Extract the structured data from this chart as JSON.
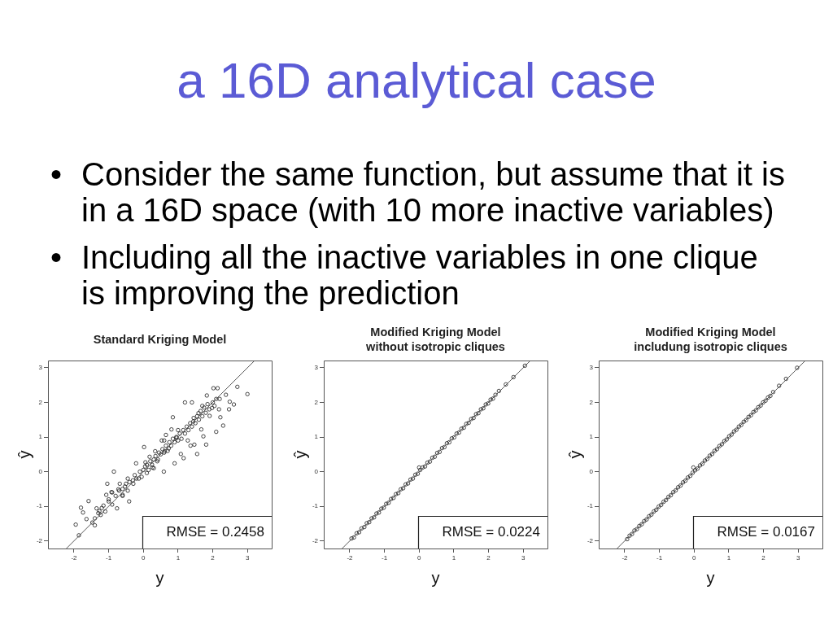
{
  "chart_data": [
    {
      "type": "other",
      "title": "a 16D analytical case",
      "annotations": [
        "• Consider the same function, but assume that it is in a 16D space (with 10 more inactive variables)",
        "• Including all the inactive variables in one clique is improving the prediction"
      ]
    },
    {
      "type": "scatter",
      "title": "Standard Kriging Model",
      "xlabel": "y",
      "ylabel": "ŷ",
      "xlim": [
        -2.75,
        3.7
      ],
      "ylim": [
        -2.22,
        3.21
      ],
      "xticks": [
        -2,
        -1,
        0,
        1,
        2,
        3
      ],
      "yticks": [
        -2,
        -1,
        0,
        1,
        2,
        3
      ],
      "marker": "circle",
      "annotations": [
        "RMSE = 0.2458"
      ],
      "series": [
        {
          "color": "#1a1a1a",
          "x": [
            -1.95,
            -1.86,
            -1.8,
            -1.74,
            -1.58,
            -1.64,
            -1.47,
            -1.4,
            -1.35,
            -1.27,
            -1.23,
            -1.15,
            -1.07,
            -1.04,
            -1.0,
            -0.92,
            -0.85,
            -0.76,
            -0.72,
            -0.68,
            -0.6,
            -0.53,
            -0.41,
            -0.45,
            -0.29,
            -0.21,
            -0.13,
            0.02,
            0.06,
            0.1,
            0.18,
            0.26,
            0.34,
            0.42,
            0.53,
            0.59,
            0.61,
            0.65,
            0.73,
            0.85,
            0.9,
            0.81,
            0.96,
            1.08,
            1.16,
            1.2,
            1.28,
            1.36,
            1.4,
            1.44,
            1.47,
            1.55,
            1.59,
            1.67,
            1.73,
            1.81,
            1.83,
            1.91,
            1.98,
            2.02,
            2.14,
            2.1,
            2.18,
            2.22,
            2.3,
            2.38,
            2.49,
            2.47,
            2.61,
            2.71,
            3.0,
            -1.3,
            -1.2,
            -1.1,
            -1.0,
            -0.9,
            -0.8,
            -0.7,
            -0.6,
            -0.5,
            -0.45,
            -0.4,
            -0.3,
            -0.25,
            -0.2,
            -0.1,
            -0.05,
            0.0,
            0.05,
            0.1,
            0.15,
            0.2,
            0.25,
            0.3,
            0.35,
            0.4,
            0.45,
            0.5,
            0.55,
            0.6,
            0.65,
            0.7,
            0.75,
            0.8,
            0.85,
            0.9,
            0.95,
            1.0,
            1.05,
            1.1,
            1.15,
            1.2,
            1.25,
            1.3,
            1.35,
            1.4,
            1.45,
            1.5,
            1.55,
            1.6,
            1.65,
            1.7,
            1.75,
            1.8,
            1.85,
            1.9,
            2.0,
            2.05,
            2.1,
            1.0,
            0.6,
            0.3,
            -0.6,
            -0.9,
            -1.4,
            1.7,
            2.2
          ],
          "values": [
            -1.53,
            -1.84,
            -1.04,
            -1.18,
            -0.85,
            -1.37,
            -1.47,
            -1.55,
            -1.06,
            -1.14,
            -1.25,
            -0.98,
            -0.67,
            -0.35,
            -0.86,
            -0.59,
            0.0,
            -1.06,
            -0.51,
            -0.35,
            -0.67,
            -0.43,
            -0.86,
            -0.2,
            -0.35,
            0.24,
            -0.2,
            0.71,
            0.27,
            -0.04,
            0.43,
            0.12,
            0.59,
            0.35,
            0.9,
            0.0,
            0.59,
            1.06,
            0.67,
            1.57,
            0.24,
            1.22,
            0.98,
            0.51,
            0.39,
            2.0,
            0.9,
            0.75,
            2.0,
            1.45,
            0.78,
            0.51,
            1.69,
            1.22,
            1.02,
            0.78,
            2.2,
            1.61,
            1.84,
            2.41,
            2.41,
            1.15,
            1.8,
            1.57,
            1.33,
            2.22,
            2.02,
            1.8,
            1.94,
            2.45,
            2.24,
            -1.2,
            -1.05,
            -1.15,
            -0.8,
            -0.95,
            -0.7,
            -0.55,
            -0.5,
            -0.35,
            -0.55,
            -0.3,
            -0.25,
            -0.1,
            -0.2,
            0.0,
            -0.15,
            0.05,
            0.15,
            0.2,
            0.05,
            0.3,
            0.2,
            0.35,
            0.45,
            0.3,
            0.55,
            0.5,
            0.65,
            0.55,
            0.75,
            0.6,
            0.85,
            0.75,
            0.95,
            0.85,
            1.0,
            0.9,
            1.1,
            0.95,
            1.2,
            1.1,
            1.3,
            1.2,
            1.4,
            1.3,
            1.55,
            1.4,
            1.6,
            1.5,
            1.75,
            1.6,
            1.85,
            1.7,
            1.95,
            1.8,
            2.0,
            1.9,
            2.1,
            1.2,
            0.9,
            0.1,
            -0.7,
            -0.6,
            -1.35,
            1.9,
            2.1
          ]
        },
        {
          "type": "line",
          "marker": "none",
          "color": "#555555",
          "x": [
            -2.22,
            3.21
          ],
          "values": [
            -2.22,
            3.21
          ]
        }
      ]
    },
    {
      "type": "scatter",
      "title": "Modified Kriging Model\nwithout isotropic cliques",
      "xlabel": "y",
      "ylabel": "ŷ",
      "xlim": [
        -2.75,
        3.7
      ],
      "ylim": [
        -2.22,
        3.21
      ],
      "xticks": [
        -2,
        -1,
        0,
        1,
        2,
        3
      ],
      "yticks": [
        -2,
        -1,
        0,
        1,
        2,
        3
      ],
      "marker": "circle",
      "annotations": [
        "RMSE = 0.0224"
      ],
      "series": [
        {
          "color": "#1a1a1a",
          "x": [
            -1.95,
            -1.88,
            -1.8,
            -1.73,
            -1.66,
            -1.58,
            -1.51,
            -1.44,
            -1.37,
            -1.3,
            -1.23,
            -1.16,
            -1.09,
            -1.02,
            -0.95,
            -0.88,
            -0.81,
            -0.74,
            -0.67,
            -0.6,
            -0.53,
            -0.46,
            -0.39,
            -0.32,
            -0.25,
            -0.18,
            -0.11,
            -0.04,
            0.0,
            0.03,
            0.1,
            0.17,
            0.24,
            0.31,
            0.38,
            0.45,
            0.52,
            0.59,
            0.66,
            0.73,
            0.8,
            0.87,
            0.94,
            1.01,
            1.08,
            1.15,
            1.22,
            1.29,
            1.36,
            1.43,
            1.5,
            1.57,
            1.64,
            1.71,
            1.78,
            1.85,
            1.92,
            1.99,
            2.06,
            2.13,
            2.2,
            2.3,
            2.5,
            2.72,
            3.05
          ],
          "values": [
            -1.93,
            -1.9,
            -1.78,
            -1.75,
            -1.64,
            -1.6,
            -1.49,
            -1.46,
            -1.35,
            -1.32,
            -1.21,
            -1.18,
            -1.07,
            -1.04,
            -0.93,
            -0.9,
            -0.79,
            -0.76,
            -0.65,
            -0.62,
            -0.51,
            -0.48,
            -0.37,
            -0.34,
            -0.23,
            -0.2,
            -0.09,
            -0.06,
            0.12,
            0.05,
            0.12,
            0.15,
            0.26,
            0.29,
            0.4,
            0.43,
            0.54,
            0.57,
            0.68,
            0.71,
            0.82,
            0.85,
            0.96,
            0.99,
            1.1,
            1.13,
            1.24,
            1.27,
            1.38,
            1.41,
            1.52,
            1.55,
            1.66,
            1.69,
            1.8,
            1.83,
            1.94,
            1.97,
            2.08,
            2.11,
            2.22,
            2.33,
            2.52,
            2.73,
            3.06
          ]
        },
        {
          "type": "line",
          "marker": "none",
          "color": "#555555",
          "x": [
            -2.22,
            3.21
          ],
          "values": [
            -2.22,
            3.21
          ]
        }
      ]
    },
    {
      "type": "scatter",
      "title": "Modified Kriging Model\nincludung isotropic cliques",
      "xlabel": "y",
      "ylabel": "ŷ",
      "xlim": [
        -2.75,
        3.7
      ],
      "ylim": [
        -2.22,
        3.21
      ],
      "xticks": [
        -2,
        -1,
        0,
        1,
        2,
        3
      ],
      "yticks": [
        -2,
        -1,
        0,
        1,
        2,
        3
      ],
      "marker": "circle",
      "annotations": [
        "RMSE = 0.0167"
      ],
      "series": [
        {
          "color": "#1a1a1a",
          "x": [
            -1.93,
            -1.86,
            -1.79,
            -1.72,
            -1.65,
            -1.58,
            -1.51,
            -1.44,
            -1.37,
            -1.3,
            -1.23,
            -1.16,
            -1.09,
            -1.02,
            -0.95,
            -0.88,
            -0.81,
            -0.74,
            -0.67,
            -0.6,
            -0.53,
            -0.46,
            -0.39,
            -0.32,
            -0.25,
            -0.18,
            -0.11,
            -0.04,
            -0.02,
            0.03,
            0.1,
            0.17,
            0.24,
            0.31,
            0.38,
            0.45,
            0.52,
            0.59,
            0.66,
            0.73,
            0.8,
            0.87,
            0.94,
            1.01,
            1.08,
            1.15,
            1.22,
            1.29,
            1.36,
            1.43,
            1.5,
            1.57,
            1.64,
            1.71,
            1.78,
            1.85,
            1.92,
            1.99,
            2.06,
            2.13,
            2.2,
            2.28,
            2.45,
            2.65,
            2.97
          ],
          "values": [
            -1.95,
            -1.85,
            -1.8,
            -1.7,
            -1.66,
            -1.57,
            -1.52,
            -1.43,
            -1.38,
            -1.29,
            -1.24,
            -1.15,
            -1.1,
            -1.01,
            -0.96,
            -0.87,
            -0.82,
            -0.73,
            -0.68,
            -0.59,
            -0.54,
            -0.45,
            -0.4,
            -0.31,
            -0.26,
            -0.17,
            -0.12,
            -0.03,
            0.12,
            0.04,
            0.09,
            0.18,
            0.23,
            0.32,
            0.37,
            0.46,
            0.51,
            0.6,
            0.65,
            0.74,
            0.79,
            0.88,
            0.93,
            1.02,
            1.07,
            1.16,
            1.21,
            1.3,
            1.35,
            1.44,
            1.49,
            1.58,
            1.63,
            1.72,
            1.77,
            1.86,
            1.91,
            2.0,
            2.05,
            2.14,
            2.19,
            2.3,
            2.48,
            2.68,
            3.0
          ]
        },
        {
          "type": "line",
          "marker": "none",
          "color": "#555555",
          "x": [
            -2.22,
            3.21
          ],
          "values": [
            -2.22,
            3.21
          ]
        }
      ]
    }
  ]
}
